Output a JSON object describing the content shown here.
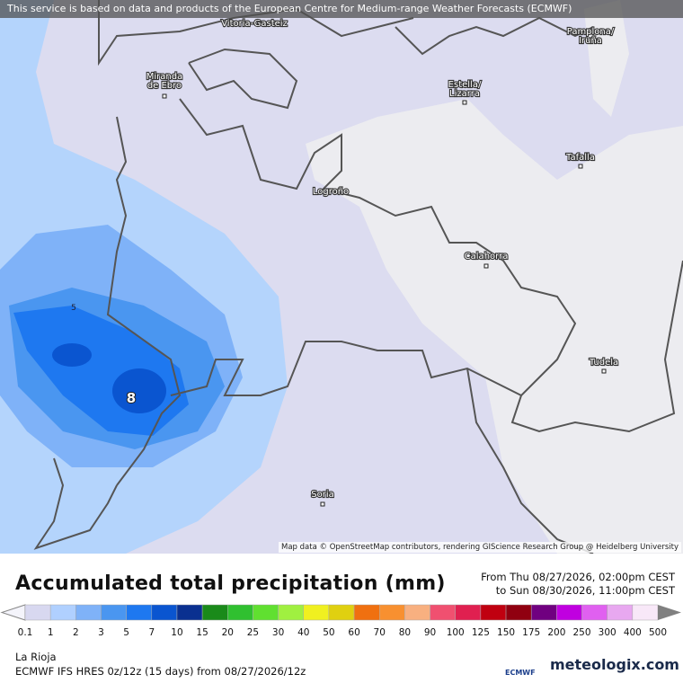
{
  "notice": "This service is based on data and products of the European Centre for Medium-range Weather Forecasts (ECMWF)",
  "cities": [
    {
      "lines": [
        "Vitoria-Gasteiz"
      ]
    },
    {
      "lines": [
        "Pamplona/",
        "Iruña"
      ]
    },
    {
      "lines": [
        "Miranda",
        "de Ebro"
      ]
    },
    {
      "lines": [
        "Estella/",
        "Lizarra"
      ]
    },
    {
      "lines": [
        "Tafalla"
      ]
    },
    {
      "lines": [
        "Logroño"
      ]
    },
    {
      "lines": [
        "Calahorra"
      ]
    },
    {
      "lines": [
        "Tudela"
      ]
    },
    {
      "lines": [
        "Soria"
      ]
    }
  ],
  "contour_labels": [
    5,
    8
  ],
  "attribution": "Map data © OpenStreetMap contributors, rendering GIScience Research Group @ Heidelberg University",
  "title": "Accumulated total precipitation (mm)",
  "period_from": "From Thu 08/27/2026, 02:00pm CEST",
  "period_to": "to Sun 08/30/2026, 11:00pm CEST",
  "legend": {
    "labels": [
      0.1,
      1,
      2,
      3,
      5,
      7,
      10,
      15,
      20,
      25,
      30,
      40,
      50,
      60,
      70,
      80,
      90,
      100,
      125,
      150,
      175,
      200,
      250,
      300,
      400,
      500
    ],
    "colors": [
      "#f4f4fb",
      "#d8d8f0",
      "#b0d0ff",
      "#7fb2f8",
      "#4a96f0",
      "#1e78f0",
      "#0a55d0",
      "#0a3090",
      "#1a8a1a",
      "#30c030",
      "#60e030",
      "#a0f040",
      "#f0f020",
      "#e0d010",
      "#f07010",
      "#f89030",
      "#f8b080",
      "#f05070",
      "#e02050",
      "#c00010",
      "#900010",
      "#700080",
      "#c000e0",
      "#e060f0",
      "#e8a8f0",
      "#f8e8f8",
      "#d0d0d0",
      "#808080"
    ]
  },
  "region": "La Rioja",
  "model": "ECMWF IFS HRES 0z/12z (15 days) from  08/27/2026/12z",
  "logos": [
    "ECMWF",
    "meteologix.com"
  ]
}
